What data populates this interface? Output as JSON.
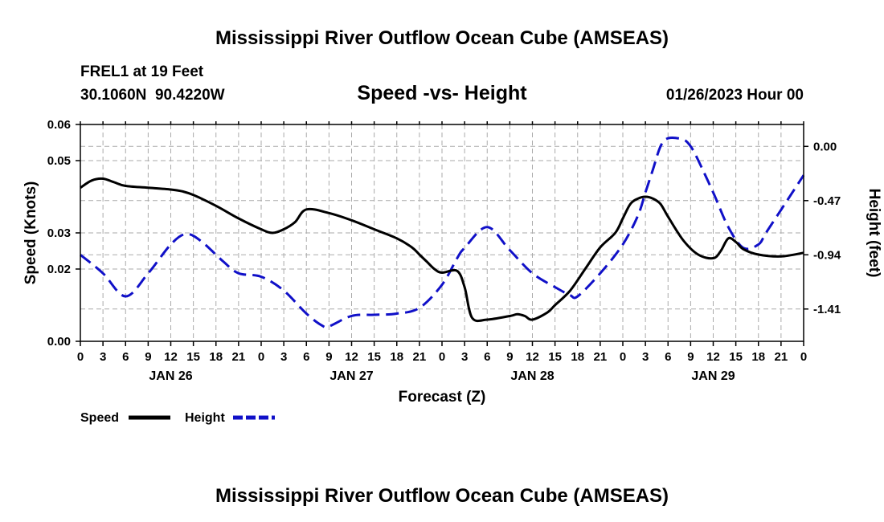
{
  "page_title": "Mississippi River Outflow Ocean Cube (AMSEAS)",
  "footer_title": "Mississippi River Outflow Ocean Cube (AMSEAS)",
  "station": {
    "name_line": "FREL1 at 19 Feet",
    "coords_line": "30.1060N  90.4220W"
  },
  "date_line": "01/26/2023 Hour 00",
  "colors": {
    "speed": "#000000",
    "height": "#1010c8",
    "grid": "#aaaaaa"
  },
  "chart_data": {
    "type": "line",
    "title": "Speed -vs- Height",
    "xlabel": "Forecast (Z)",
    "ylabel": "Speed (Knots)",
    "y2label": "Height (feet)",
    "xlim": [
      0,
      96
    ],
    "ylim": [
      0,
      0.06
    ],
    "y2lim": [
      -1.69,
      0.19
    ],
    "x_ticks": [
      0,
      3,
      6,
      9,
      12,
      15,
      18,
      21,
      24,
      27,
      30,
      33,
      36,
      39,
      42,
      45,
      48,
      51,
      54,
      57,
      60,
      63,
      66,
      69,
      72,
      75,
      78,
      81,
      84,
      87,
      90,
      93,
      96
    ],
    "x_tick_labels": [
      "0",
      "3",
      "6",
      "9",
      "12",
      "15",
      "18",
      "21",
      "0",
      "3",
      "6",
      "9",
      "12",
      "15",
      "18",
      "21",
      "0",
      "3",
      "6",
      "9",
      "12",
      "15",
      "18",
      "21",
      "0",
      "3",
      "6",
      "9",
      "12",
      "15",
      "18",
      "21",
      "0"
    ],
    "day_labels": [
      {
        "x": 12,
        "label": "JAN 26"
      },
      {
        "x": 36,
        "label": "JAN 27"
      },
      {
        "x": 60,
        "label": "JAN 28"
      },
      {
        "x": 84,
        "label": "JAN 29"
      }
    ],
    "y_ticks": [
      0,
      0.02,
      0.03,
      0.05,
      0.06
    ],
    "y_tick_labels": [
      "0.00",
      "0.02",
      "0.03",
      "0.05",
      "0.06"
    ],
    "y2_ticks": [
      0.0,
      -0.47,
      -0.94,
      -1.41
    ],
    "y2_tick_labels": [
      "0.00",
      "-0.47",
      "-0.94",
      "-1.41"
    ],
    "grid": true,
    "legend_position": "bottom-left",
    "series": [
      {
        "name": "Speed",
        "axis": "left",
        "style": "solid",
        "x": [
          0,
          1.5,
          3,
          4.5,
          6,
          9,
          12,
          13.5,
          15,
          18,
          21,
          24,
          25.5,
          27,
          28.5,
          30,
          33,
          36,
          39,
          42,
          44,
          45,
          46,
          47,
          48,
          50,
          51,
          52,
          54,
          57,
          58,
          59,
          60,
          62,
          63,
          65,
          67,
          69,
          71,
          72,
          73,
          74,
          75,
          76,
          77,
          78,
          80,
          82,
          84,
          85,
          86,
          87,
          88,
          90,
          93,
          96
        ],
        "values": [
          0.0425,
          0.0445,
          0.045,
          0.044,
          0.043,
          0.0425,
          0.042,
          0.0415,
          0.0405,
          0.0375,
          0.034,
          0.031,
          0.03,
          0.031,
          0.033,
          0.0365,
          0.0355,
          0.0335,
          0.031,
          0.0285,
          0.026,
          0.024,
          0.022,
          0.02,
          0.019,
          0.0195,
          0.015,
          0.0065,
          0.006,
          0.007,
          0.0075,
          0.007,
          0.006,
          0.008,
          0.01,
          0.014,
          0.02,
          0.026,
          0.03,
          0.034,
          0.038,
          0.0395,
          0.04,
          0.0395,
          0.038,
          0.0345,
          0.028,
          0.024,
          0.023,
          0.025,
          0.0285,
          0.0275,
          0.0255,
          0.024,
          0.0235,
          0.0245
        ]
      },
      {
        "name": "Height",
        "axis": "right",
        "style": "dashed",
        "x": [
          0,
          3,
          6,
          9,
          12,
          14,
          16,
          19,
          21,
          24,
          27,
          30,
          32,
          33,
          36,
          39,
          42,
          45,
          48,
          50,
          51,
          54,
          57,
          60,
          63,
          65,
          66,
          69,
          72,
          74,
          75,
          76,
          77,
          78,
          80,
          81,
          82,
          84,
          86,
          88,
          90,
          91,
          93,
          96
        ],
        "values": [
          -0.94,
          -1.1,
          -1.3,
          -1.1,
          -0.85,
          -0.76,
          -0.82,
          -1.0,
          -1.1,
          -1.13,
          -1.25,
          -1.45,
          -1.55,
          -1.56,
          -1.47,
          -1.46,
          -1.45,
          -1.4,
          -1.2,
          -0.97,
          -0.88,
          -0.7,
          -0.9,
          -1.1,
          -1.22,
          -1.29,
          -1.3,
          -1.1,
          -0.85,
          -0.6,
          -0.4,
          -0.2,
          0.0,
          0.07,
          0.06,
          0.0,
          -0.12,
          -0.4,
          -0.7,
          -0.88,
          -0.85,
          -0.75,
          -0.55,
          -0.25
        ]
      }
    ]
  },
  "legend": {
    "items": [
      {
        "label": "Speed",
        "series": "speed"
      },
      {
        "label": "Height",
        "series": "height"
      }
    ]
  }
}
